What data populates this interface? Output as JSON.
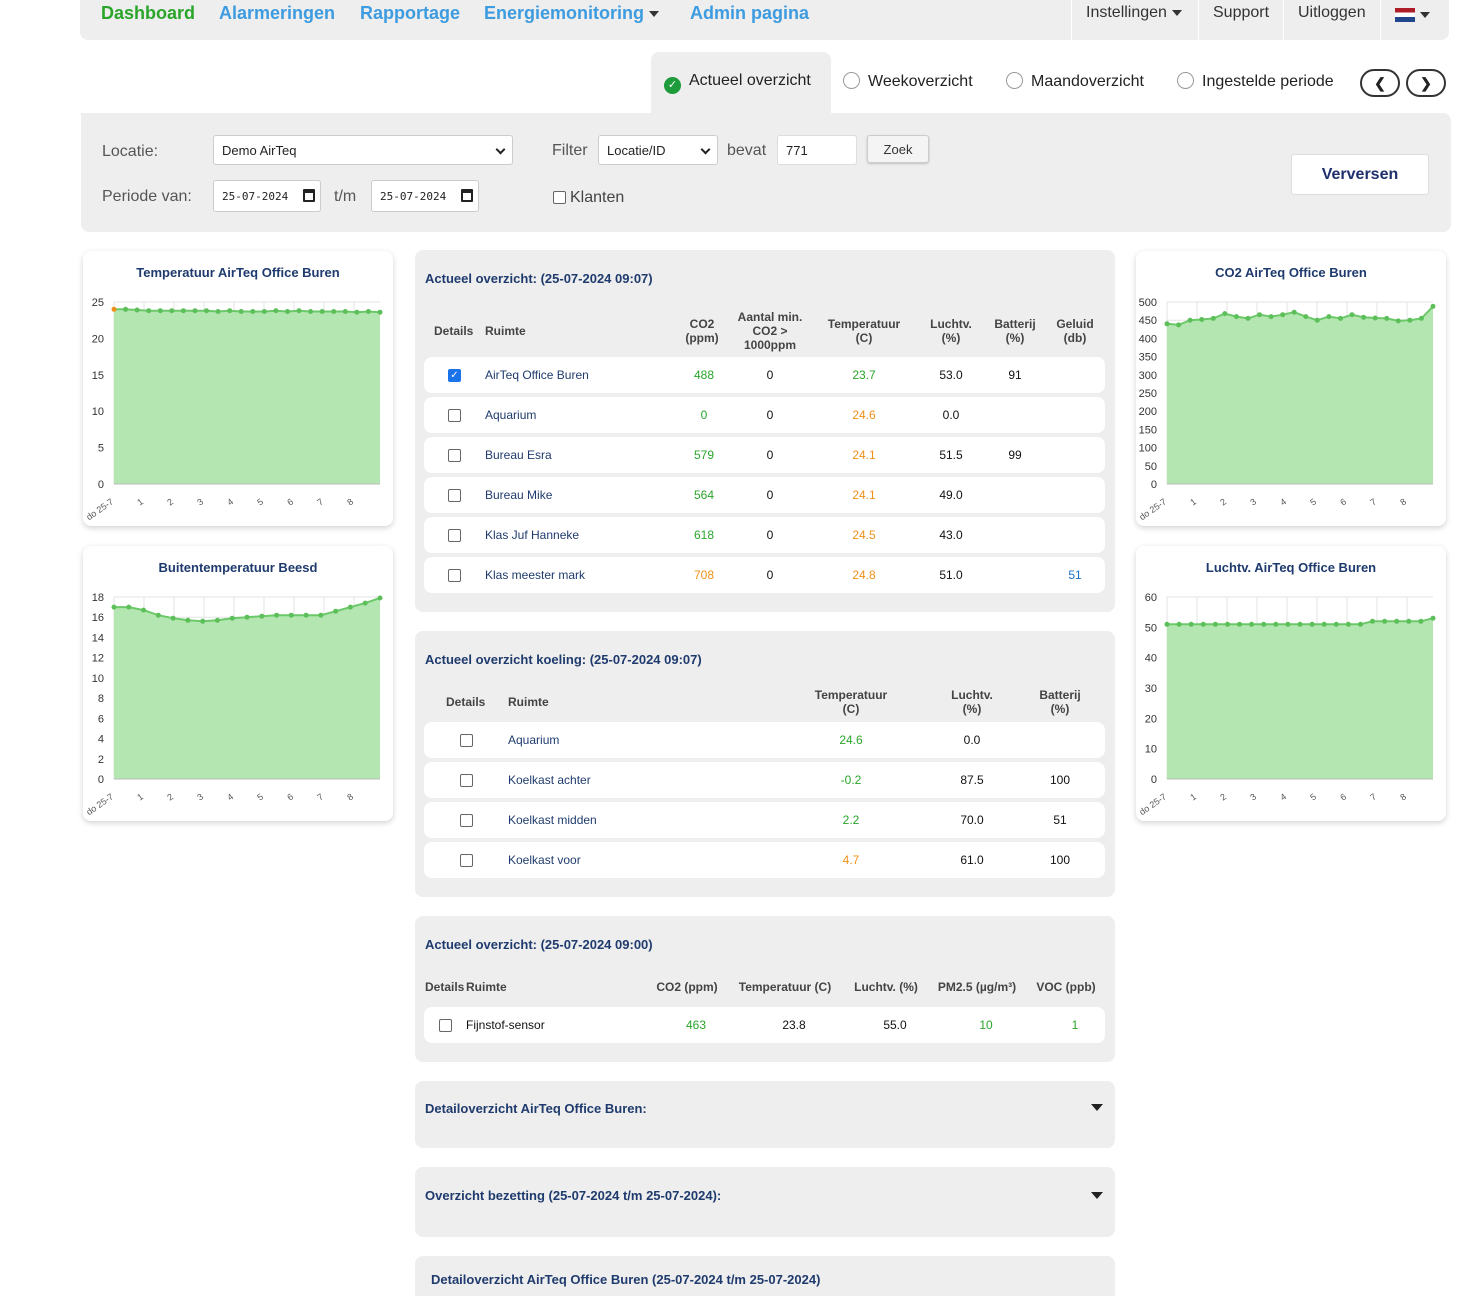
{
  "nav": {
    "dashboard": "Dashboard",
    "alarmeringen": "Alarmeringen",
    "rapportage": "Rapportage",
    "energiemonitoring": "Energiemonitoring",
    "admin": "Admin pagina",
    "instellingen": "Instellingen",
    "support": "Support",
    "uitloggen": "Uitloggen",
    "language_icon": "dutch-flag-icon"
  },
  "tabs": {
    "actueel": "Actueel overzicht",
    "week": "Weekoverzicht",
    "maand": "Maandoverzicht",
    "periode": "Ingestelde periode",
    "prev": "❮",
    "next": "❯"
  },
  "filters": {
    "locatie_label": "Locatie:",
    "locatie_value": "Demo AirTeq",
    "filter_label": "Filter",
    "filter_value": "Locatie/ID",
    "bevat_label": "bevat",
    "bevat_value": "771",
    "zoek": "Zoek",
    "verversen": "Verversen",
    "periode_label": "Periode van:",
    "date_from": "25-07-2024",
    "tm_label": "t/m",
    "date_to": "25-07-2024",
    "klanten": "Klanten"
  },
  "charts": {
    "temp": {
      "title": "Temperatuur AirTeq Office Buren",
      "y_ticks": [
        "25",
        "20",
        "15",
        "10",
        "5",
        "0"
      ],
      "x_ticks": [
        "do 25-7",
        "1",
        "2",
        "3",
        "4",
        "5",
        "6",
        "7",
        "8"
      ],
      "ylim": [
        0,
        25
      ],
      "values": [
        24,
        24,
        23.9,
        23.8,
        23.8,
        23.8,
        23.8,
        23.8,
        23.8,
        23.7,
        23.8,
        23.7,
        23.7,
        23.7,
        23.8,
        23.7,
        23.8,
        23.7,
        23.7,
        23.7,
        23.7,
        23.6,
        23.7,
        23.6
      ]
    },
    "buiten": {
      "title": "Buitentemperatuur Beesd",
      "y_ticks": [
        "18",
        "16",
        "14",
        "12",
        "10",
        "8",
        "6",
        "4",
        "2",
        "0"
      ],
      "x_ticks": [
        "do 25-7",
        "1",
        "2",
        "3",
        "4",
        "5",
        "6",
        "7",
        "8"
      ],
      "ylim": [
        0,
        18
      ],
      "values": [
        17,
        17,
        16.7,
        16.2,
        15.9,
        15.7,
        15.6,
        15.7,
        15.9,
        16,
        16.1,
        16.2,
        16.2,
        16.2,
        16.2,
        16.6,
        17,
        17.4,
        17.9
      ]
    },
    "co2": {
      "title": "CO2 AirTeq Office Buren",
      "y_ticks": [
        "500",
        "450",
        "400",
        "350",
        "300",
        "250",
        "200",
        "150",
        "100",
        "50",
        "0"
      ],
      "x_ticks": [
        "do 25-7",
        "1",
        "2",
        "3",
        "4",
        "5",
        "6",
        "7",
        "8"
      ],
      "ylim": [
        0,
        500
      ],
      "values": [
        440,
        437,
        450,
        452,
        455,
        468,
        460,
        455,
        465,
        460,
        465,
        472,
        460,
        450,
        460,
        455,
        465,
        458,
        456,
        455,
        448,
        450,
        455,
        488
      ]
    },
    "luchtv": {
      "title": "Luchtv. AirTeq Office Buren",
      "y_ticks": [
        "60",
        "50",
        "40",
        "30",
        "20",
        "10",
        "0"
      ],
      "x_ticks": [
        "do 25-7",
        "1",
        "2",
        "3",
        "4",
        "5",
        "6",
        "7",
        "8"
      ],
      "ylim": [
        0,
        60
      ],
      "values": [
        51,
        51,
        51,
        51,
        51,
        51,
        51,
        51,
        51,
        51,
        51,
        51,
        51,
        51,
        51,
        51,
        51,
        52,
        52,
        52,
        52,
        52,
        53
      ]
    }
  },
  "panel1": {
    "title": "Actueel overzicht: (25-07-2024 09:07)",
    "headers": [
      "Details",
      "Ruimte",
      "CO2 (ppm)",
      "Aantal min. CO2 > 1000ppm",
      "Temperatuur (C)",
      "Luchtv. (%)",
      "Batterij (%)",
      "Geluid (db)"
    ],
    "rows": [
      {
        "name": "AirTeq Office Buren",
        "co2": "488",
        "co2c": "g",
        "min": "0",
        "temp": "23.7",
        "tempc": "g",
        "hum": "53.0",
        "bat": "91",
        "snd": "",
        "checked": true
      },
      {
        "name": "Aquarium",
        "co2": "0",
        "co2c": "g",
        "min": "0",
        "temp": "24.6",
        "tempc": "o",
        "hum": "0.0",
        "bat": "",
        "snd": "",
        "checked": false
      },
      {
        "name": "Bureau Esra",
        "co2": "579",
        "co2c": "g",
        "min": "0",
        "temp": "24.1",
        "tempc": "o",
        "hum": "51.5",
        "bat": "99",
        "snd": "",
        "checked": false
      },
      {
        "name": "Bureau Mike",
        "co2": "564",
        "co2c": "g",
        "min": "0",
        "temp": "24.1",
        "tempc": "o",
        "hum": "49.0",
        "bat": "",
        "snd": "",
        "checked": false
      },
      {
        "name": "Klas Juf Hanneke",
        "co2": "618",
        "co2c": "g",
        "min": "0",
        "temp": "24.5",
        "tempc": "o",
        "hum": "43.0",
        "bat": "",
        "snd": "",
        "checked": false
      },
      {
        "name": "Klas meester mark",
        "co2": "708",
        "co2c": "o",
        "min": "0",
        "temp": "24.8",
        "tempc": "o",
        "hum": "51.0",
        "bat": "",
        "snd": "51",
        "checked": false
      }
    ]
  },
  "panel2": {
    "title": "Actueel overzicht koeling: (25-07-2024 09:07)",
    "headers": [
      "Details",
      "Ruimte",
      "Temperatuur (C)",
      "Luchtv. (%)",
      "Batterij (%)"
    ],
    "rows": [
      {
        "name": "Aquarium",
        "temp": "24.6",
        "tempc": "g",
        "hum": "0.0",
        "bat": ""
      },
      {
        "name": "Koelkast achter",
        "temp": "-0.2",
        "tempc": "g",
        "hum": "87.5",
        "bat": "100"
      },
      {
        "name": "Koelkast midden",
        "temp": "2.2",
        "tempc": "g",
        "hum": "70.0",
        "bat": "51"
      },
      {
        "name": "Koelkast voor",
        "temp": "4.7",
        "tempc": "o",
        "hum": "61.0",
        "bat": "100"
      }
    ]
  },
  "panel3": {
    "title": "Actueel overzicht: (25-07-2024 09:00)",
    "headers": [
      "Details",
      "Ruimte",
      "CO2 (ppm)",
      "Temperatuur (C)",
      "Luchtv. (%)",
      "PM2.5 (µg/m³)",
      "VOC (ppb)"
    ],
    "row": {
      "name": "Fijnstof-sensor",
      "co2": "463",
      "temp": "23.8",
      "hum": "55.0",
      "pm": "10",
      "voc": "1"
    }
  },
  "panel4": {
    "title": "Detailoverzicht AirTeq Office Buren:"
  },
  "panel5": {
    "title": "Overzicht bezetting (25-07-2024 t/m 25-07-2024):"
  },
  "panel6": {
    "title": "Detailoverzicht AirTeq Office Buren (25-07-2024 t/m 25-07-2024)"
  },
  "colors": {
    "accent": "#3d9be0",
    "active": "#2aa52a",
    "warn": "#f0901c",
    "area": "#b3e6b0",
    "line": "#6cc96a"
  }
}
